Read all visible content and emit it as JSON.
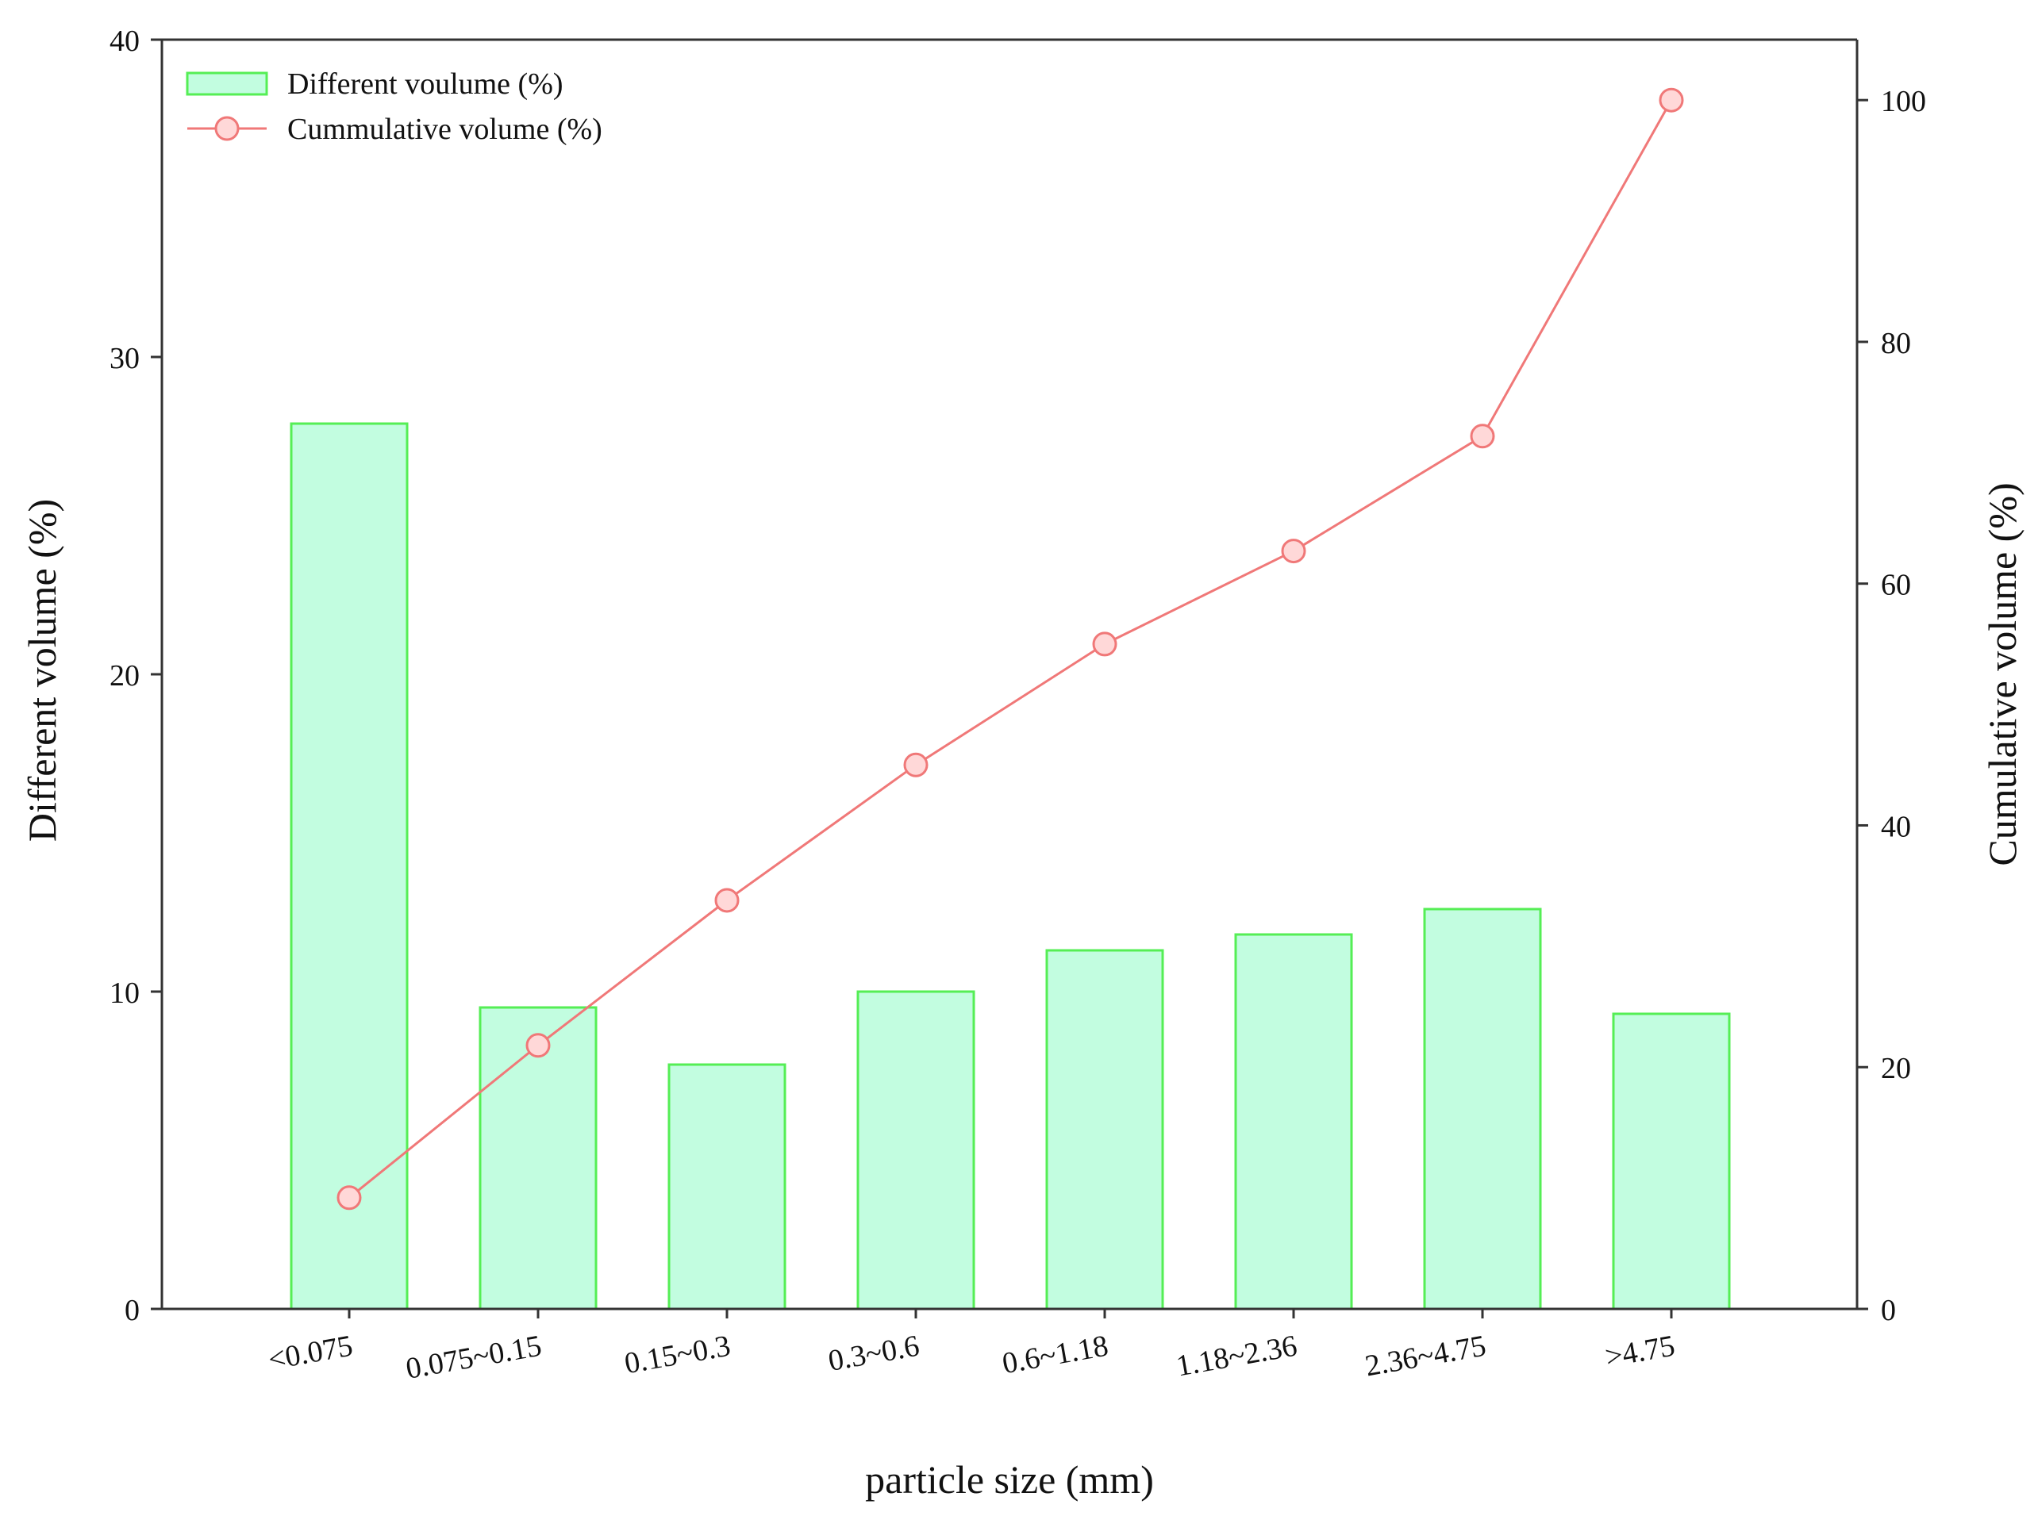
{
  "chart_data": {
    "type": "bar",
    "categories": [
      "<0.075",
      "0.075~0.15",
      "0.15~0.3",
      "0.3~0.6",
      "0.6~1.18",
      "1.18~2.36",
      "2.36~4.75",
      ">4.75"
    ],
    "series": [
      {
        "name": "Different voulume (%)",
        "type": "bar",
        "axis": "left",
        "values": [
          27.9,
          9.5,
          7.7,
          10.0,
          11.3,
          11.8,
          12.6,
          9.3
        ],
        "fill": "#c2fde0",
        "stroke": "#55ee55"
      },
      {
        "name": "Cummulative volume (%)",
        "type": "line",
        "axis": "right",
        "values": [
          9.2,
          21.8,
          33.8,
          45.0,
          55.0,
          62.7,
          72.2,
          100.0
        ],
        "stroke": "#f07878",
        "marker_fill": "#ffd8d8"
      }
    ],
    "xlabel": "particle size (mm)",
    "ylabel": "Different volume (%)",
    "y2label": "Cumulative volume (%)",
    "ylim": [
      0,
      40
    ],
    "y2lim": [
      0,
      105
    ],
    "yticks": [
      0,
      10,
      20,
      30,
      40
    ],
    "y2ticks": [
      0,
      20,
      40,
      60,
      80,
      100
    ],
    "legend_position": "top-left",
    "grid": false,
    "title": ""
  }
}
